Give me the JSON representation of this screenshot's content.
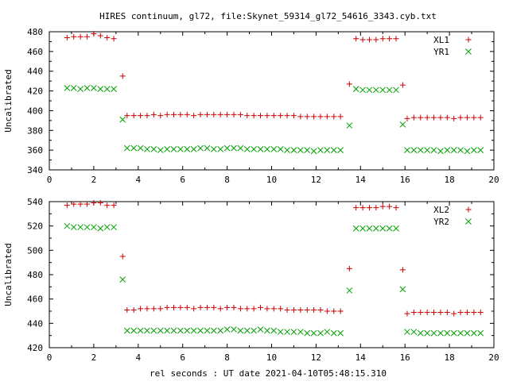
{
  "figure": {
    "title": "HIRES continuum, gl72, file:Skynet_59314_gl72_54616_3343.cyb.txt",
    "xlabel": "rel seconds : UT date 2021-04-10T05:48:15.310"
  },
  "colors": {
    "red_series": "#cc0000",
    "green_series": "#00a000"
  },
  "chart_data": [
    {
      "type": "scatter",
      "ylabel": "Uncalibrated",
      "xlim": [
        0,
        20
      ],
      "ylim": [
        340,
        480
      ],
      "x_ticks": [
        0,
        2,
        4,
        6,
        8,
        10,
        12,
        14,
        16,
        18,
        20
      ],
      "y_ticks": [
        340,
        360,
        380,
        400,
        420,
        440,
        460,
        480
      ],
      "grid": false,
      "legend_position": "top-right",
      "series": [
        {
          "name": "XL1",
          "marker": "plus",
          "color": "#cc0000",
          "x": [
            0.8,
            1.1,
            1.4,
            1.7,
            2.0,
            2.3,
            2.6,
            2.9,
            3.3,
            3.5,
            3.8,
            4.1,
            4.4,
            4.7,
            5.0,
            5.3,
            5.6,
            5.9,
            6.2,
            6.5,
            6.8,
            7.1,
            7.4,
            7.7,
            8.0,
            8.3,
            8.6,
            8.9,
            9.2,
            9.5,
            9.8,
            10.1,
            10.4,
            10.7,
            11.0,
            11.3,
            11.6,
            11.9,
            12.2,
            12.5,
            12.8,
            13.1,
            13.5,
            13.8,
            14.1,
            14.4,
            14.7,
            15.0,
            15.3,
            15.6,
            15.9,
            16.1,
            16.4,
            16.7,
            17.0,
            17.3,
            17.6,
            17.9,
            18.2,
            18.5,
            18.8,
            19.1,
            19.4
          ],
          "y": [
            474,
            475,
            475,
            475,
            478,
            476,
            474,
            473,
            435,
            395,
            395,
            395,
            395,
            396,
            395,
            396,
            396,
            396,
            396,
            395,
            396,
            396,
            396,
            396,
            396,
            396,
            396,
            395,
            395,
            395,
            395,
            395,
            395,
            395,
            395,
            394,
            394,
            394,
            394,
            394,
            394,
            394,
            427,
            473,
            472,
            472,
            472,
            473,
            473,
            473,
            426,
            392,
            393,
            393,
            393,
            393,
            393,
            393,
            392,
            393,
            393,
            393,
            393
          ]
        },
        {
          "name": "YR1",
          "marker": "cross",
          "color": "#00a000",
          "x": [
            0.8,
            1.1,
            1.4,
            1.7,
            2.0,
            2.3,
            2.6,
            2.9,
            3.3,
            3.5,
            3.8,
            4.1,
            4.4,
            4.7,
            5.0,
            5.3,
            5.6,
            5.9,
            6.2,
            6.5,
            6.8,
            7.1,
            7.4,
            7.7,
            8.0,
            8.3,
            8.6,
            8.9,
            9.2,
            9.5,
            9.8,
            10.1,
            10.4,
            10.7,
            11.0,
            11.3,
            11.6,
            11.9,
            12.2,
            12.5,
            12.8,
            13.1,
            13.5,
            13.8,
            14.1,
            14.4,
            14.7,
            15.0,
            15.3,
            15.6,
            15.9,
            16.1,
            16.4,
            16.7,
            17.0,
            17.3,
            17.6,
            17.9,
            18.2,
            18.5,
            18.8,
            19.1,
            19.4
          ],
          "y": [
            423,
            423,
            422,
            423,
            423,
            422,
            422,
            422,
            391,
            362,
            362,
            362,
            361,
            361,
            360,
            361,
            361,
            361,
            361,
            361,
            362,
            362,
            361,
            361,
            362,
            362,
            362,
            361,
            361,
            361,
            361,
            361,
            361,
            360,
            360,
            360,
            360,
            359,
            360,
            360,
            360,
            360,
            385,
            422,
            421,
            421,
            421,
            421,
            421,
            421,
            386,
            360,
            360,
            360,
            360,
            360,
            359,
            360,
            360,
            360,
            359,
            360,
            360
          ]
        }
      ]
    },
    {
      "type": "scatter",
      "ylabel": "Uncalibrated",
      "xlim": [
        0,
        20
      ],
      "ylim": [
        420,
        540
      ],
      "x_ticks": [
        0,
        2,
        4,
        6,
        8,
        10,
        12,
        14,
        16,
        18,
        20
      ],
      "y_ticks": [
        420,
        440,
        460,
        480,
        500,
        520,
        540
      ],
      "grid": false,
      "legend_position": "top-right",
      "series": [
        {
          "name": "XL2",
          "marker": "plus",
          "color": "#cc0000",
          "x": [
            0.8,
            1.1,
            1.4,
            1.7,
            2.0,
            2.3,
            2.6,
            2.9,
            3.3,
            3.5,
            3.8,
            4.1,
            4.4,
            4.7,
            5.0,
            5.3,
            5.6,
            5.9,
            6.2,
            6.5,
            6.8,
            7.1,
            7.4,
            7.7,
            8.0,
            8.3,
            8.6,
            8.9,
            9.2,
            9.5,
            9.8,
            10.1,
            10.4,
            10.7,
            11.0,
            11.3,
            11.6,
            11.9,
            12.2,
            12.5,
            12.8,
            13.1,
            13.5,
            13.8,
            14.1,
            14.4,
            14.7,
            15.0,
            15.3,
            15.6,
            15.9,
            16.1,
            16.4,
            16.7,
            17.0,
            17.3,
            17.6,
            17.9,
            18.2,
            18.5,
            18.8,
            19.1,
            19.4
          ],
          "y": [
            537,
            538,
            538,
            538,
            539,
            539,
            537,
            537,
            495,
            451,
            451,
            452,
            452,
            452,
            452,
            453,
            453,
            453,
            453,
            452,
            453,
            453,
            453,
            452,
            453,
            453,
            452,
            452,
            452,
            453,
            452,
            452,
            452,
            451,
            451,
            451,
            451,
            451,
            451,
            450,
            450,
            450,
            485,
            535,
            535,
            535,
            535,
            536,
            536,
            535,
            484,
            448,
            449,
            449,
            449,
            449,
            449,
            449,
            448,
            449,
            449,
            449,
            449
          ]
        },
        {
          "name": "YR2",
          "marker": "cross",
          "color": "#00a000",
          "x": [
            0.8,
            1.1,
            1.4,
            1.7,
            2.0,
            2.3,
            2.6,
            2.9,
            3.3,
            3.5,
            3.8,
            4.1,
            4.4,
            4.7,
            5.0,
            5.3,
            5.6,
            5.9,
            6.2,
            6.5,
            6.8,
            7.1,
            7.4,
            7.7,
            8.0,
            8.3,
            8.6,
            8.9,
            9.2,
            9.5,
            9.8,
            10.1,
            10.4,
            10.7,
            11.0,
            11.3,
            11.6,
            11.9,
            12.2,
            12.5,
            12.8,
            13.1,
            13.5,
            13.8,
            14.1,
            14.4,
            14.7,
            15.0,
            15.3,
            15.6,
            15.9,
            16.1,
            16.4,
            16.7,
            17.0,
            17.3,
            17.6,
            17.9,
            18.2,
            18.5,
            18.8,
            19.1,
            19.4
          ],
          "y": [
            520,
            519,
            519,
            519,
            519,
            518,
            519,
            519,
            476,
            434,
            434,
            434,
            434,
            434,
            434,
            434,
            434,
            434,
            434,
            434,
            434,
            434,
            434,
            434,
            435,
            435,
            434,
            434,
            434,
            435,
            434,
            434,
            433,
            433,
            433,
            433,
            432,
            432,
            432,
            433,
            432,
            432,
            467,
            518,
            518,
            518,
            518,
            518,
            518,
            518,
            468,
            433,
            433,
            432,
            432,
            432,
            432,
            432,
            432,
            432,
            432,
            432,
            432
          ]
        }
      ]
    }
  ]
}
